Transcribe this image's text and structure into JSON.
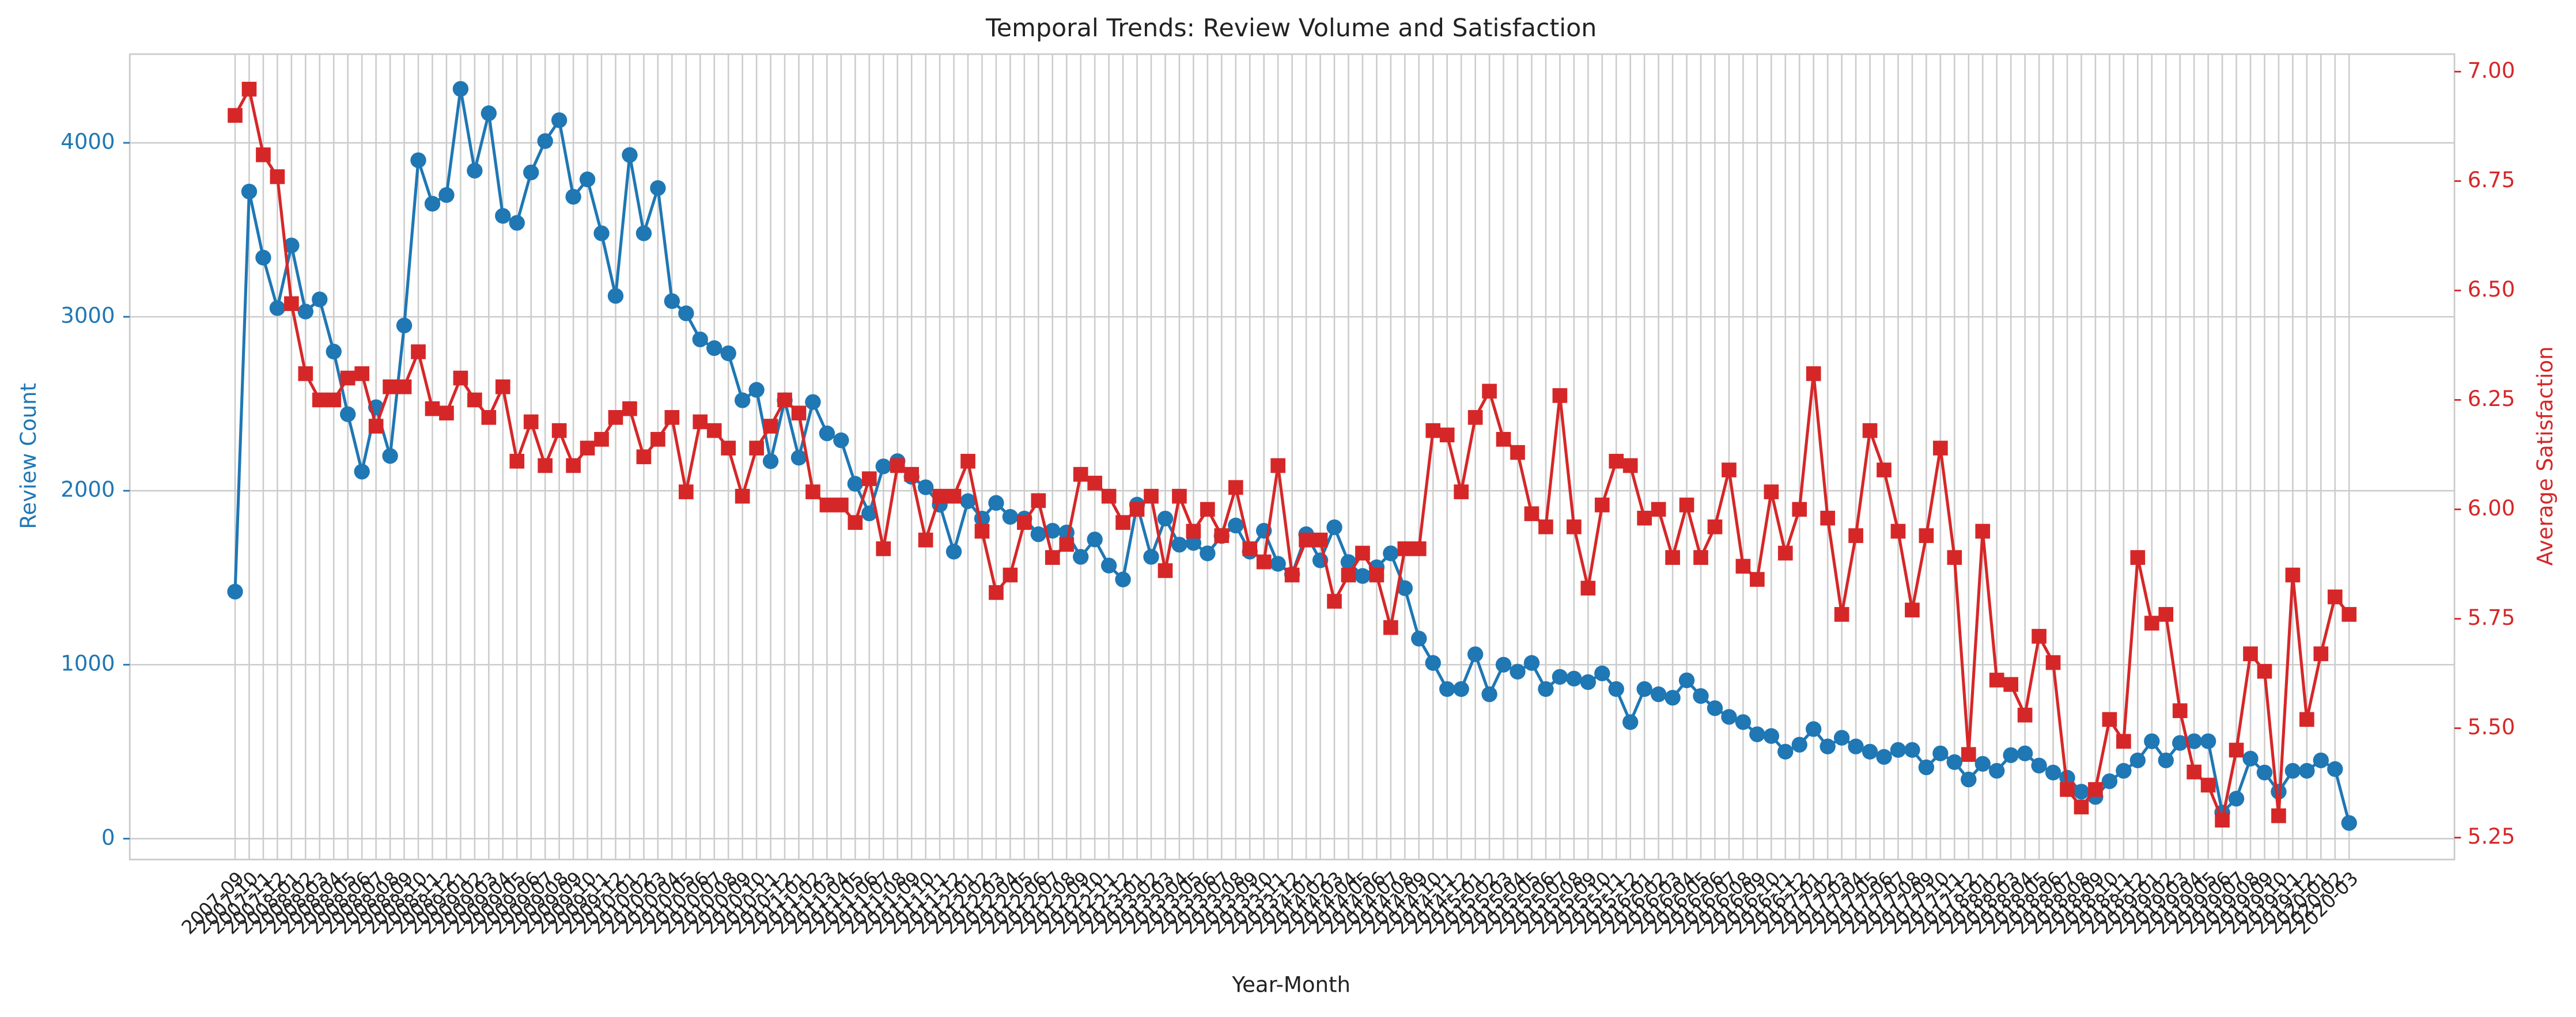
{
  "chart_data": {
    "type": "line",
    "title": "Temporal Trends: Review Volume and Satisfaction",
    "xlabel": "Year-Month",
    "ylabel": "Review Count",
    "y2label": "Average Satisfaction",
    "grid": true,
    "categories": [
      "2007-09",
      "2007-10",
      "2007-11",
      "2007-12",
      "2008-01",
      "2008-02",
      "2008-03",
      "2008-04",
      "2008-05",
      "2008-06",
      "2008-07",
      "2008-08",
      "2008-09",
      "2008-10",
      "2008-11",
      "2008-12",
      "2009-01",
      "2009-02",
      "2009-03",
      "2009-04",
      "2009-05",
      "2009-06",
      "2009-07",
      "2009-08",
      "2009-09",
      "2009-10",
      "2009-11",
      "2009-12",
      "2010-01",
      "2010-02",
      "2010-03",
      "2010-04",
      "2010-05",
      "2010-06",
      "2010-07",
      "2010-08",
      "2010-09",
      "2010-10",
      "2010-11",
      "2010-12",
      "2011-01",
      "2011-02",
      "2011-03",
      "2011-04",
      "2011-05",
      "2011-06",
      "2011-07",
      "2011-08",
      "2011-09",
      "2011-10",
      "2011-11",
      "2011-12",
      "2012-01",
      "2012-02",
      "2012-03",
      "2012-04",
      "2012-05",
      "2012-06",
      "2012-07",
      "2012-08",
      "2012-09",
      "2012-10",
      "2012-11",
      "2012-12",
      "2013-01",
      "2013-02",
      "2013-03",
      "2013-04",
      "2013-05",
      "2013-06",
      "2013-07",
      "2013-08",
      "2013-09",
      "2013-10",
      "2013-11",
      "2013-12",
      "2014-01",
      "2014-02",
      "2014-03",
      "2014-04",
      "2014-05",
      "2014-06",
      "2014-07",
      "2014-08",
      "2014-09",
      "2014-10",
      "2014-11",
      "2014-12",
      "2015-01",
      "2015-02",
      "2015-03",
      "2015-04",
      "2015-05",
      "2015-06",
      "2015-07",
      "2015-08",
      "2015-09",
      "2015-10",
      "2015-11",
      "2015-12",
      "2016-01",
      "2016-02",
      "2016-03",
      "2016-04",
      "2016-05",
      "2016-06",
      "2016-07",
      "2016-08",
      "2016-09",
      "2016-10",
      "2016-11",
      "2016-12",
      "2017-01",
      "2017-02",
      "2017-03",
      "2017-04",
      "2017-05",
      "2017-06",
      "2017-07",
      "2017-08",
      "2017-09",
      "2017-10",
      "2017-11",
      "2017-12",
      "2018-01",
      "2018-02",
      "2018-03",
      "2018-04",
      "2018-05",
      "2018-06",
      "2018-07",
      "2018-08",
      "2018-09",
      "2018-10",
      "2018-11",
      "2018-12",
      "2019-01",
      "2019-02",
      "2019-03",
      "2019-04",
      "2019-05",
      "2019-06",
      "2019-07",
      "2019-08",
      "2019-09",
      "2019-10",
      "2019-11",
      "2019-12",
      "2020-01",
      "2020-02",
      "2020-03"
    ],
    "series": [
      {
        "color": "#1f77b4",
        "marker": "circle",
        "axis": "y",
        "values": [
          1420,
          3720,
          3340,
          3050,
          3410,
          3030,
          3100,
          2800,
          2440,
          2110,
          2480,
          2200,
          2950,
          3900,
          3650,
          3700,
          4310,
          3840,
          4170,
          3580,
          3540,
          3830,
          4010,
          4130,
          3690,
          3790,
          3480,
          3120,
          3930,
          3480,
          3740,
          3090,
          3020,
          2870,
          2820,
          2790,
          2520,
          2580,
          2170,
          2520,
          2190,
          2510,
          2330,
          2290,
          2040,
          1870,
          2140,
          2170,
          2080,
          2020,
          1920,
          1650,
          1940,
          1840,
          1930,
          1850,
          1840,
          1750,
          1770,
          1760,
          1620,
          1720,
          1570,
          1490,
          1920,
          1620,
          1840,
          1690,
          1700,
          1640,
          1740,
          1800,
          1650,
          1770,
          1580,
          1520,
          1750,
          1600,
          1790,
          1590,
          1510,
          1560,
          1640,
          1440,
          1150,
          1010,
          860,
          860,
          1060,
          830,
          1000,
          960,
          1010,
          860,
          930,
          920,
          900,
          950,
          860,
          670,
          860,
          830,
          810,
          910,
          820,
          750,
          700,
          670,
          600,
          590,
          500,
          540,
          630,
          530,
          580,
          530,
          500,
          470,
          510,
          510,
          410,
          490,
          440,
          340,
          430,
          390,
          480,
          490,
          420,
          380,
          350,
          270,
          240,
          330,
          390,
          450,
          560,
          450,
          550,
          560,
          560,
          150,
          230,
          460,
          380,
          270,
          390,
          390,
          450,
          400,
          90
        ]
      },
      {
        "color": "#d62728",
        "marker": "square",
        "axis": "y2",
        "values": [
          6.9,
          6.96,
          6.81,
          6.76,
          6.47,
          6.31,
          6.25,
          6.25,
          6.3,
          6.31,
          6.19,
          6.28,
          6.28,
          6.36,
          6.23,
          6.22,
          6.3,
          6.25,
          6.21,
          6.28,
          6.11,
          6.2,
          6.1,
          6.18,
          6.1,
          6.14,
          6.16,
          6.21,
          6.23,
          6.12,
          6.16,
          6.21,
          6.04,
          6.2,
          6.18,
          6.14,
          6.03,
          6.14,
          6.19,
          6.25,
          6.22,
          6.04,
          6.01,
          6.01,
          5.97,
          6.07,
          5.91,
          6.1,
          6.08,
          5.93,
          6.03,
          6.03,
          6.11,
          5.95,
          5.81,
          5.85,
          5.97,
          6.02,
          5.89,
          5.92,
          6.08,
          6.06,
          6.03,
          5.97,
          6.0,
          6.03,
          5.86,
          6.03,
          5.95,
          6.0,
          5.94,
          6.05,
          5.91,
          5.88,
          6.1,
          5.85,
          5.93,
          5.93,
          5.79,
          5.85,
          5.9,
          5.85,
          5.73,
          5.91,
          5.91,
          6.18,
          6.17,
          6.04,
          6.21,
          6.27,
          6.16,
          6.13,
          5.99,
          5.96,
          6.26,
          5.96,
          5.82,
          6.01,
          6.11,
          6.1,
          5.98,
          6.0,
          5.89,
          6.01,
          5.89,
          5.96,
          6.09,
          5.87,
          5.84,
          6.04,
          5.9,
          6.0,
          6.31,
          5.98,
          5.76,
          5.94,
          6.18,
          6.09,
          5.95,
          5.77,
          5.94,
          6.14,
          5.89,
          5.44,
          5.95,
          5.61,
          5.6,
          5.53,
          5.71,
          5.65,
          5.36,
          5.32,
          5.36,
          5.52,
          5.47,
          5.89,
          5.74,
          5.76,
          5.54,
          5.4,
          5.37,
          5.29,
          5.45,
          5.67,
          5.63,
          5.3,
          5.85,
          5.52,
          5.67,
          5.8,
          5.76
        ]
      }
    ],
    "ylim": [
      -120,
      4510
    ],
    "yticks": [
      0,
      1000,
      2000,
      3000,
      4000
    ],
    "y2lim": [
      5.2,
      7.04
    ],
    "y2ticks": [
      5.25,
      {
        "value": 5.5,
        "label": "5.50"
      },
      5.75,
      {
        "value": 6,
        "label": "6.00"
      },
      6.25,
      {
        "value": 6.5,
        "label": "6.50"
      },
      6.75,
      {
        "value": 7,
        "label": "7.00"
      }
    ]
  }
}
